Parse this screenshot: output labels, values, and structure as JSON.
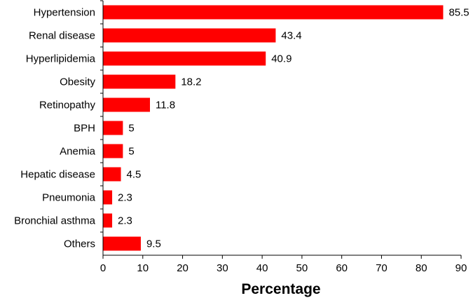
{
  "chart_data": {
    "type": "bar",
    "orientation": "horizontal",
    "title": "",
    "xlabel": "Percentage",
    "ylabel": "",
    "xlim": [
      0,
      90
    ],
    "xticks": [
      0,
      10,
      20,
      30,
      40,
      50,
      60,
      70,
      80,
      90
    ],
    "grid": false,
    "legend": "none",
    "bar_color": "#ff0000",
    "categories": [
      "Hypertension",
      "Renal disease",
      "Hyperlipidemia",
      "Obesity",
      "Retinopathy",
      "BPH",
      "Anemia",
      "Hepatic disease",
      "Pneumonia",
      "Bronchial asthma",
      "Others"
    ],
    "values": [
      85.5,
      43.4,
      40.9,
      18.2,
      11.8,
      5,
      5,
      4.5,
      2.3,
      2.3,
      9.5
    ],
    "value_labels": [
      "85.5",
      "43.4",
      "40.9",
      "18.2",
      "11.8",
      "5",
      "5",
      "4.5",
      "2.3",
      "2.3",
      "9.5"
    ]
  }
}
